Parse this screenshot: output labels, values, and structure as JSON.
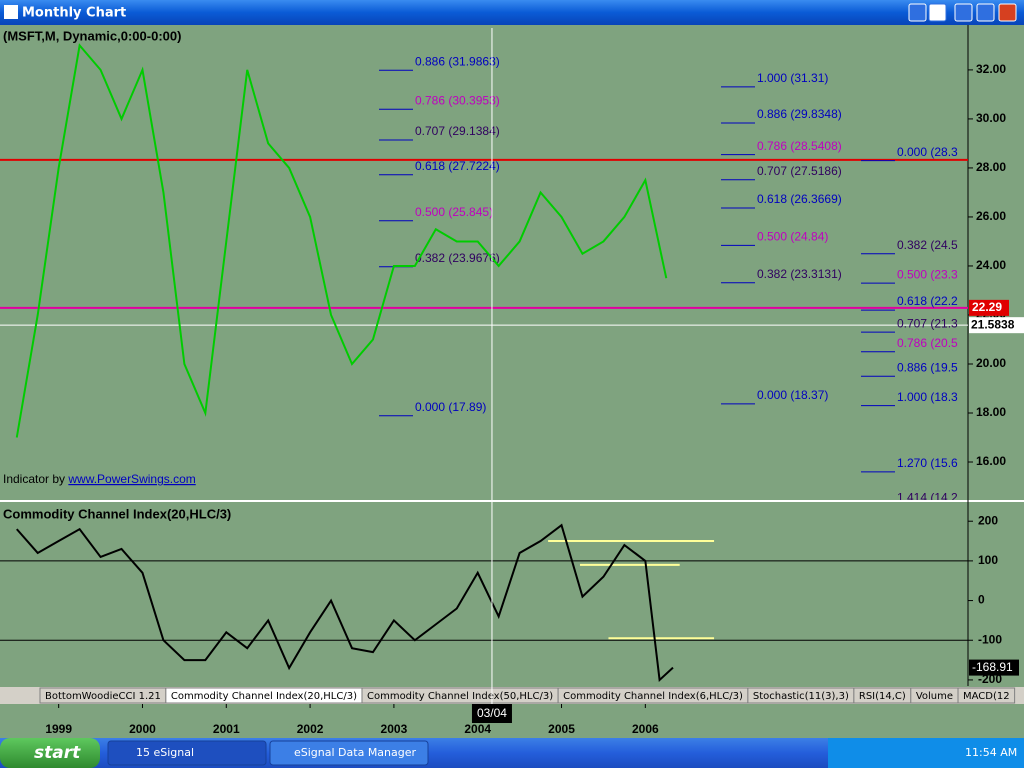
{
  "window": {
    "title": "Monthly Chart"
  },
  "chart_data": [
    {
      "type": "line",
      "title": "(MSFT,M, Dynamic,0:00-0:00)",
      "x": [
        1998.5,
        1998.75,
        1999.0,
        1999.25,
        1999.5,
        1999.75,
        2000.0,
        2000.25,
        2000.5,
        2000.75,
        2001.0,
        2001.25,
        2001.5,
        2001.75,
        2002.0,
        2002.25,
        2002.5,
        2002.75,
        2003.0,
        2003.25,
        2003.5,
        2003.75,
        2004.0,
        2004.25,
        2004.5,
        2004.75,
        2005.0,
        2005.25,
        2005.5,
        2005.75,
        2006.0,
        2006.25
      ],
      "values": [
        17,
        22,
        28,
        33,
        32,
        30,
        32,
        27,
        20,
        18,
        25,
        32,
        29,
        28,
        26,
        22,
        20,
        21,
        24,
        24,
        25.5,
        25,
        25,
        24,
        25,
        27,
        26,
        24.5,
        25,
        26,
        27.5,
        23.5
      ],
      "color": "#00cc00",
      "xlim": [
        1998.3,
        2009.85
      ],
      "xticks": [
        1999,
        2000,
        2001,
        2002,
        2003,
        2004,
        2005,
        2006
      ],
      "cursor": {
        "value": 2004.17,
        "label": "03/04"
      },
      "ylim": [
        14.45,
        33.71
      ],
      "yticks": [
        {
          "value": 16,
          "label": "16.00"
        },
        {
          "value": 18,
          "label": "18.00"
        },
        {
          "value": 20,
          "label": "20.00"
        },
        {
          "value": 22,
          "label": "22.00"
        },
        {
          "value": 24,
          "label": "24.00"
        },
        {
          "value": 26,
          "label": "26.00"
        },
        {
          "value": 28,
          "label": "28.00"
        },
        {
          "value": 30,
          "label": "30.00"
        },
        {
          "value": 32,
          "label": "32.00"
        }
      ],
      "last_price": 22.29,
      "cursor_price": 21.5838,
      "hlines": [
        {
          "value": 28.33,
          "color": "#e00000"
        },
        {
          "value": 22.29,
          "color": "#e000a0"
        }
      ],
      "fib_sets": [
        [
          {
            "label": "0.886 (31.9863)",
            "value": 31.9863,
            "color": "#0000c0"
          },
          {
            "label": "0.786 (30.3953)",
            "value": 30.3953,
            "color": "#c000c0"
          },
          {
            "label": "0.707 (29.1384)",
            "value": 29.1384,
            "color": "#300060"
          },
          {
            "label": "0.618 (27.7224)",
            "value": 27.7224,
            "color": "#0000c0"
          },
          {
            "label": "0.500 (25.845)",
            "value": 25.845,
            "color": "#c000c0"
          },
          {
            "label": "0.382 (23.9676)",
            "value": 23.9676,
            "color": "#300060"
          },
          {
            "label": "0.000 (17.89)",
            "value": 17.89,
            "color": "#0000c0"
          }
        ],
        [
          {
            "label": "1.000 (31.31)",
            "value": 31.31,
            "color": "#0000c0"
          },
          {
            "label": "0.886 (29.8348)",
            "value": 29.8348,
            "color": "#0000c0"
          },
          {
            "label": "0.786 (28.5408)",
            "value": 28.5408,
            "color": "#c000c0"
          },
          {
            "label": "0.707 (27.5186)",
            "value": 27.5186,
            "color": "#300060"
          },
          {
            "label": "0.618 (26.3669)",
            "value": 26.3669,
            "color": "#0000c0"
          },
          {
            "label": "0.500 (24.84)",
            "value": 24.84,
            "color": "#c000c0"
          },
          {
            "label": "0.382 (23.3131)",
            "value": 23.3131,
            "color": "#300060"
          },
          {
            "label": "0.000 (18.37)",
            "value": 18.37,
            "color": "#0000c0"
          }
        ],
        [
          {
            "label": "0.000 (28.3",
            "value": 28.3,
            "color": "#0000c0"
          },
          {
            "label": "0.382 (24.5",
            "value": 24.5,
            "color": "#300060"
          },
          {
            "label": "0.500 (23.3",
            "value": 23.3,
            "color": "#c000c0"
          },
          {
            "label": "0.618 (22.2",
            "value": 22.2,
            "color": "#0000c0"
          },
          {
            "label": "0.707 (21.3",
            "value": 21.3,
            "color": "#300060"
          },
          {
            "label": "0.786 (20.5",
            "value": 20.5,
            "color": "#c000c0"
          },
          {
            "label": "0.886 (19.5",
            "value": 19.5,
            "color": "#0000c0"
          },
          {
            "label": "1.000 (18.3",
            "value": 18.3,
            "color": "#0000c0"
          },
          {
            "label": "1.270 (15.6",
            "value": 15.6,
            "color": "#0000c0"
          },
          {
            "label": "1.414 (14.2",
            "value": 14.2,
            "color": "#300060"
          }
        ]
      ],
      "annotation": {
        "text": "Indicator by ",
        "link": "www.PowerSwings.com"
      }
    },
    {
      "type": "line",
      "title": "Commodity Channel Index(20,HLC/3)",
      "x": [
        1998.5,
        1998.75,
        1999.0,
        1999.25,
        1999.5,
        1999.75,
        2000.0,
        2000.25,
        2000.5,
        2000.75,
        2001.0,
        2001.25,
        2001.5,
        2001.75,
        2002.0,
        2002.25,
        2002.5,
        2002.75,
        2003.0,
        2003.25,
        2003.5,
        2003.75,
        2004.0,
        2004.25,
        2004.5,
        2004.75,
        2005.0,
        2005.25,
        2005.5,
        2005.75,
        2006.0,
        2006.17,
        2006.33
      ],
      "values": [
        180,
        120,
        150,
        180,
        110,
        130,
        70,
        -100,
        -150,
        -150,
        -80,
        -120,
        -50,
        -170,
        -80,
        0,
        -120,
        -130,
        -50,
        -100,
        -60,
        -20,
        70,
        -40,
        120,
        150,
        190,
        10,
        60,
        140,
        100,
        -200,
        -168.91
      ],
      "color": "#000000",
      "xlim": [
        1998.3,
        2009.85
      ],
      "ylim": [
        -215.3,
        245.9
      ],
      "yticks": [
        -200,
        -100,
        0,
        100,
        200
      ],
      "reference_lines": [
        -100,
        100
      ],
      "last_value": -168.91,
      "level_color": "#ffff99",
      "level_lines": [
        {
          "x": [
            2004.84,
            2006.82
          ],
          "value": 150
        },
        {
          "x": [
            2005.22,
            2006.41
          ],
          "value": 90
        },
        {
          "x": [
            2005.56,
            2006.82
          ],
          "value": -95
        }
      ]
    }
  ],
  "tabs": [
    "BottomWoodieCCI 1.21",
    "Commodity Channel Index(20,HLC/3)",
    "Commodity Channel Index(50,HLC/3)",
    "Commodity Channel Index(6,HLC/3)",
    "Stochastic(11(3),3)",
    "RSI(14,C)",
    "Volume",
    "MACD(12"
  ],
  "taskbar": {
    "start": "start",
    "items": [
      "15 eSignal",
      "eSignal Data Manager"
    ],
    "clock": "11:54 AM"
  }
}
